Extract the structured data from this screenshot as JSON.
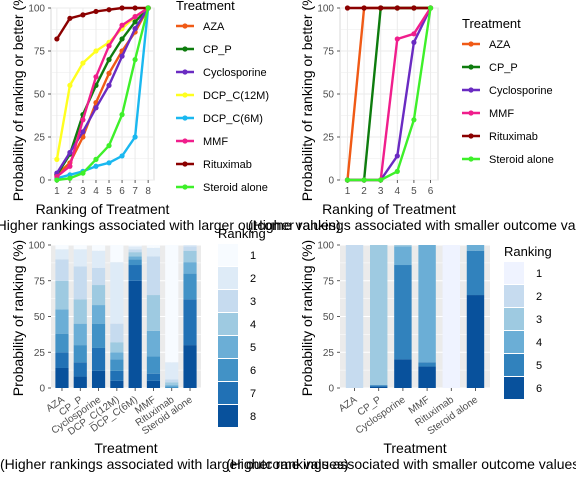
{
  "chart_data": [
    {
      "type": "line",
      "title": "",
      "xlabel": "Ranking of Treatment",
      "ylabel": "Probability of ranking or better (%)",
      "x": [
        1,
        2,
        3,
        4,
        5,
        6,
        7,
        8
      ],
      "ylim": [
        0,
        100
      ],
      "yticks": [
        0,
        25,
        50,
        75,
        100
      ],
      "legend_title": "Treatment",
      "caption": "(Higher rankings associated with larger outcome values)",
      "series": [
        {
          "name": "AZA",
          "color": "#F05A16",
          "values": [
            3,
            10,
            25,
            45,
            62,
            75,
            86,
            100
          ]
        },
        {
          "name": "CP_P",
          "color": "#0E7C0E",
          "values": [
            3,
            15,
            38,
            55,
            70,
            82,
            92,
            100
          ]
        },
        {
          "name": "Cyclosporine",
          "color": "#6A2BC2",
          "values": [
            4,
            16,
            28,
            42,
            55,
            72,
            88,
            100
          ]
        },
        {
          "name": "DCP_C(12M)",
          "color": "#FFFF1F",
          "values": [
            12,
            55,
            68,
            75,
            80,
            88,
            95,
            100
          ]
        },
        {
          "name": "DCP_C(6M)",
          "color": "#1AB8F0",
          "values": [
            1,
            3,
            5,
            8,
            10,
            14,
            25,
            100
          ]
        },
        {
          "name": "MMF",
          "color": "#F01E8C",
          "values": [
            2,
            8,
            35,
            60,
            78,
            90,
            95,
            100
          ]
        },
        {
          "name": "Rituximab",
          "color": "#8B0000",
          "values": [
            82,
            94,
            96,
            98,
            99,
            100,
            100,
            100
          ]
        },
        {
          "name": "Steroid alone",
          "color": "#3EF02A",
          "values": [
            0,
            1,
            4,
            12,
            20,
            38,
            70,
            100
          ]
        }
      ]
    },
    {
      "type": "line",
      "title": "",
      "xlabel": "Ranking of Treatment",
      "ylabel": "Probability of ranking or better (%)",
      "x": [
        1,
        2,
        3,
        4,
        5,
        6
      ],
      "ylim": [
        0,
        100
      ],
      "yticks": [
        0,
        25,
        50,
        75,
        100
      ],
      "legend_title": "Treatment",
      "caption": "(Higher rankings associated with smaller outcome values)",
      "series": [
        {
          "name": "AZA",
          "color": "#F05A16",
          "values": [
            0,
            100,
            100,
            100,
            100,
            100
          ]
        },
        {
          "name": "CP_P",
          "color": "#0E7C0E",
          "values": [
            0,
            0,
            100,
            100,
            100,
            100
          ]
        },
        {
          "name": "Cyclosporine",
          "color": "#6A2BC2",
          "values": [
            0,
            0,
            0,
            14,
            80,
            100
          ]
        },
        {
          "name": "MMF",
          "color": "#F01E8C",
          "values": [
            0,
            0,
            0,
            82,
            85,
            100
          ]
        },
        {
          "name": "Rituximab",
          "color": "#8B0000",
          "values": [
            100,
            100,
            100,
            100,
            100,
            100
          ]
        },
        {
          "name": "Steroid alone",
          "color": "#3EF02A",
          "values": [
            0,
            0,
            0,
            5,
            35,
            100
          ]
        }
      ]
    },
    {
      "type": "bar",
      "stacked": true,
      "title": "",
      "xlabel": "Treatment",
      "ylabel": "Probability of ranking (%)",
      "ylim": [
        0,
        100
      ],
      "yticks": [
        0,
        25,
        50,
        75,
        100
      ],
      "legend_title": "Ranking",
      "caption": "(Higher rankings associated with larger outcome values)",
      "categories": [
        "AZA",
        "CP_P",
        "Cyclosporine",
        "DCP_C(12M)",
        "DCP_C(6M)",
        "MMF",
        "Rituximab",
        "Steroid alone"
      ],
      "series": [
        {
          "name": "1",
          "color": "#F7FBFF",
          "values": [
            3,
            3,
            4,
            12,
            1,
            2,
            82,
            0
          ]
        },
        {
          "name": "2",
          "color": "#DEEBF7",
          "values": [
            7,
            12,
            12,
            43,
            2,
            6,
            12,
            1
          ]
        },
        {
          "name": "3",
          "color": "#C6DBEF",
          "values": [
            15,
            23,
            12,
            13,
            2,
            27,
            2,
            3
          ]
        },
        {
          "name": "4",
          "color": "#9ECAE1",
          "values": [
            20,
            17,
            14,
            7,
            3,
            25,
            2,
            8
          ]
        },
        {
          "name": "5",
          "color": "#6BAED6",
          "values": [
            17,
            15,
            13,
            5,
            2,
            18,
            1,
            8
          ]
        },
        {
          "name": "6",
          "color": "#4292C6",
          "values": [
            13,
            12,
            17,
            8,
            4,
            12,
            1,
            18
          ]
        },
        {
          "name": "7",
          "color": "#2171B5",
          "values": [
            11,
            10,
            16,
            7,
            11,
            5,
            0,
            32
          ]
        },
        {
          "name": "8",
          "color": "#08519C",
          "values": [
            14,
            8,
            12,
            5,
            75,
            5,
            0,
            30
          ]
        }
      ]
    },
    {
      "type": "bar",
      "stacked": true,
      "title": "",
      "xlabel": "Treatment",
      "ylabel": "Probability of ranking (%)",
      "ylim": [
        0,
        100
      ],
      "yticks": [
        0,
        25,
        50,
        75,
        100
      ],
      "legend_title": "Ranking",
      "caption": "(Higher rankings associated with smaller outcome values)",
      "categories": [
        "AZA",
        "CP_P",
        "Cyclosporine",
        "MMF",
        "Rituximab",
        "Steroid alone"
      ],
      "series": [
        {
          "name": "1",
          "color": "#EFF3FF",
          "values": [
            0,
            0,
            0,
            0,
            100,
            0
          ]
        },
        {
          "name": "2",
          "color": "#C6DBEF",
          "values": [
            100,
            0,
            0,
            0,
            0,
            0
          ]
        },
        {
          "name": "3",
          "color": "#9ECAE1",
          "values": [
            0,
            98,
            1,
            0,
            0,
            0
          ]
        },
        {
          "name": "4",
          "color": "#6BAED6",
          "values": [
            0,
            0,
            13,
            82,
            0,
            4
          ]
        },
        {
          "name": "5",
          "color": "#3182BD",
          "values": [
            0,
            1,
            66,
            3,
            0,
            31
          ]
        },
        {
          "name": "6",
          "color": "#08519C",
          "values": [
            0,
            1,
            20,
            15,
            0,
            65
          ]
        }
      ]
    }
  ]
}
